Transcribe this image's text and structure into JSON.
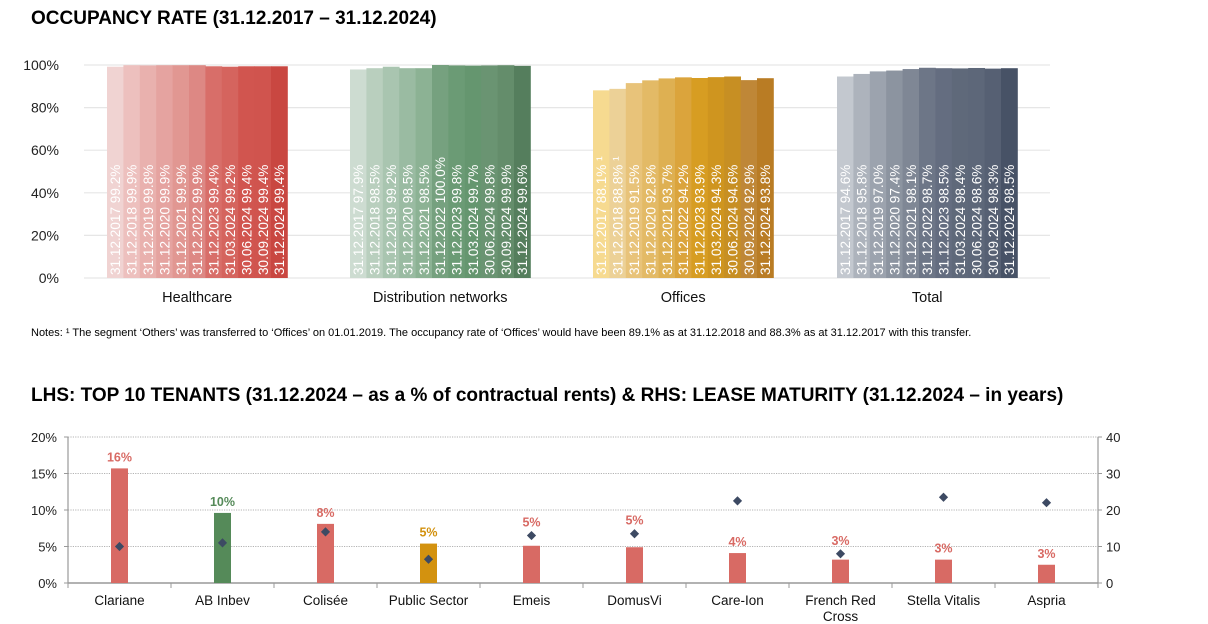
{
  "titles": {
    "occupancy": "OCCUPANCY RATE (31.12.2017 – 31.12.2024)",
    "tenants": "LHS: TOP 10 TENANTS (31.12.2024 – as a % of contractual rents) & RHS: LEASE MATURITY (31.12.2024 – in years)"
  },
  "notes": "Notes: ¹ The segment ‘Others’ was transferred to ‘Offices’ on 01.01.2019. The occupancy rate of ‘Offices’ would have been 89.1% as at 31.12.2018 and 88.3% as at 31.12.2017 with this transfer.",
  "chart_data": [
    {
      "type": "bar",
      "title": "OCCUPANCY RATE (31.12.2017 – 31.12.2024)",
      "xlabel": "",
      "ylabel": "",
      "ylim": [
        0,
        100
      ],
      "yticks": [
        "0%",
        "20%",
        "40%",
        "60%",
        "80%",
        "100%"
      ],
      "grid": true,
      "periods": [
        "31.12.2017",
        "31.12.2018",
        "31.12.2019",
        "31.12.2020",
        "31.12.2021",
        "31.12.2022",
        "31.12.2023",
        "31.03.2024",
        "30.06.2024",
        "30.09.2024",
        "31.12.2024"
      ],
      "groups": [
        {
          "name": "Healthcare",
          "values": [
            99.2,
            99.9,
            99.8,
            99.9,
            99.9,
            99.9,
            99.4,
            99.2,
            99.4,
            99.4,
            99.4
          ],
          "labels": [
            "99.2%",
            "99.9%",
            "99.8%",
            "99.9%",
            "99.9%",
            "99.9%",
            "99.4%",
            "99.2%",
            "99.4%",
            "99.4%",
            "99.4%"
          ],
          "colors": [
            "#f0d3d2",
            "#edc0be",
            "#e9b1ae",
            "#e5a3a0",
            "#e19792",
            "#dd8884",
            "#d86e69",
            "#d5645e",
            "#d1554f",
            "#d0544e",
            "#c94741"
          ]
        },
        {
          "name": "Distribution networks",
          "values": [
            97.9,
            98.5,
            99.2,
            98.5,
            98.5,
            100.0,
            99.8,
            99.7,
            99.8,
            99.9,
            99.6
          ],
          "labels": [
            "97.9%",
            "98.5%",
            "99.2%",
            "98.5%",
            "98.5%",
            "100.0%",
            "99.8%",
            "99.7%",
            "99.8%",
            "99.9%",
            "99.6%"
          ],
          "colors": [
            "#cddcd1",
            "#b9cfbe",
            "#a9c5b0",
            "#9abba2",
            "#8cb294",
            "#76a17f",
            "#6b9b75",
            "#65966f",
            "#6a9472",
            "#648d6b",
            "#557e5d"
          ]
        },
        {
          "name": "Offices",
          "values": [
            88.1,
            88.8,
            91.5,
            92.8,
            93.7,
            94.2,
            93.9,
            94.3,
            94.6,
            92.9,
            93.8
          ],
          "labels": [
            "88.1% ¹",
            "88.8% ¹",
            "91.5%",
            "92.8%",
            "93.7%",
            "94.2%",
            "93.9%",
            "94.3%",
            "94.6%",
            "92.9%",
            "93.8%"
          ],
          "colors": [
            "#f6da90",
            "#ecd197",
            "#e8c37a",
            "#e3ba66",
            "#deb052",
            "#dba43c",
            "#d79d22",
            "#cf951f",
            "#c78f23",
            "#bf8737",
            "#b97c24"
          ]
        },
        {
          "name": "Total",
          "values": [
            94.6,
            95.8,
            97.0,
            97.4,
            98.1,
            98.7,
            98.5,
            98.4,
            98.6,
            98.3,
            98.5
          ],
          "labels": [
            "94.6%",
            "95.8%",
            "97.0%",
            "97.4%",
            "98.1%",
            "98.7%",
            "98.5%",
            "98.4%",
            "98.6%",
            "98.3%",
            "98.5%"
          ],
          "colors": [
            "#c3c8cf",
            "#adb3bc",
            "#9ca3ae",
            "#8c94a0",
            "#7f8795",
            "#6d7687",
            "#646d80",
            "#5f697a",
            "#5d6779",
            "#566073",
            "#475266"
          ]
        }
      ]
    },
    {
      "type": "bar",
      "title": "LHS: TOP 10 TENANTS (31.12.2024 – as a % of contractual rents) & RHS: LEASE MATURITY (31.12.2024 – in years)",
      "categories": [
        "Clariane",
        "AB Inbev",
        "Colisée",
        "Public Sector",
        "Emeis",
        "DomusVi",
        "Care-Ion",
        "French Red Cross",
        "Stella Vitalis",
        "Aspria"
      ],
      "category_lines": [
        [
          "Clariane"
        ],
        [
          "AB Inbev"
        ],
        [
          "Colisée"
        ],
        [
          "Public Sector"
        ],
        [
          "Emeis"
        ],
        [
          "DomusVi"
        ],
        [
          "Care-Ion"
        ],
        [
          "French Red",
          "Cross"
        ],
        [
          "Stella Vitalis"
        ],
        [
          "Aspria"
        ]
      ],
      "series": [
        {
          "name": "Share of contractual rents (%)",
          "type": "bar",
          "axis": "left",
          "values": [
            15.7,
            9.6,
            8.1,
            5.4,
            5.1,
            4.9,
            4.1,
            3.2,
            3.2,
            2.5
          ],
          "labels": [
            "16%",
            "10%",
            "8%",
            "5%",
            "5%",
            "5%",
            "4%",
            "3%",
            "3%",
            "3%"
          ],
          "colors": [
            "#d86a64",
            "#558a59",
            "#d86a64",
            "#d3920f",
            "#d86a64",
            "#d86a64",
            "#d86a64",
            "#d86a64",
            "#d86a64",
            "#d86a64"
          ]
        },
        {
          "name": "Lease maturity (years)",
          "type": "scatter",
          "axis": "right",
          "marker": "diamond",
          "color": "#3d4a63",
          "values": [
            10.0,
            11.0,
            14.0,
            6.5,
            13.0,
            13.5,
            22.5,
            8.0,
            23.5,
            22.0
          ]
        }
      ],
      "ylim_left": [
        0,
        20
      ],
      "yticks_left": [
        "0%",
        "5%",
        "10%",
        "15%",
        "20%"
      ],
      "ylim_right": [
        0,
        40
      ],
      "yticks_right": [
        "0",
        "10",
        "20",
        "30",
        "40"
      ],
      "grid": "dotted",
      "legend": "none"
    }
  ]
}
